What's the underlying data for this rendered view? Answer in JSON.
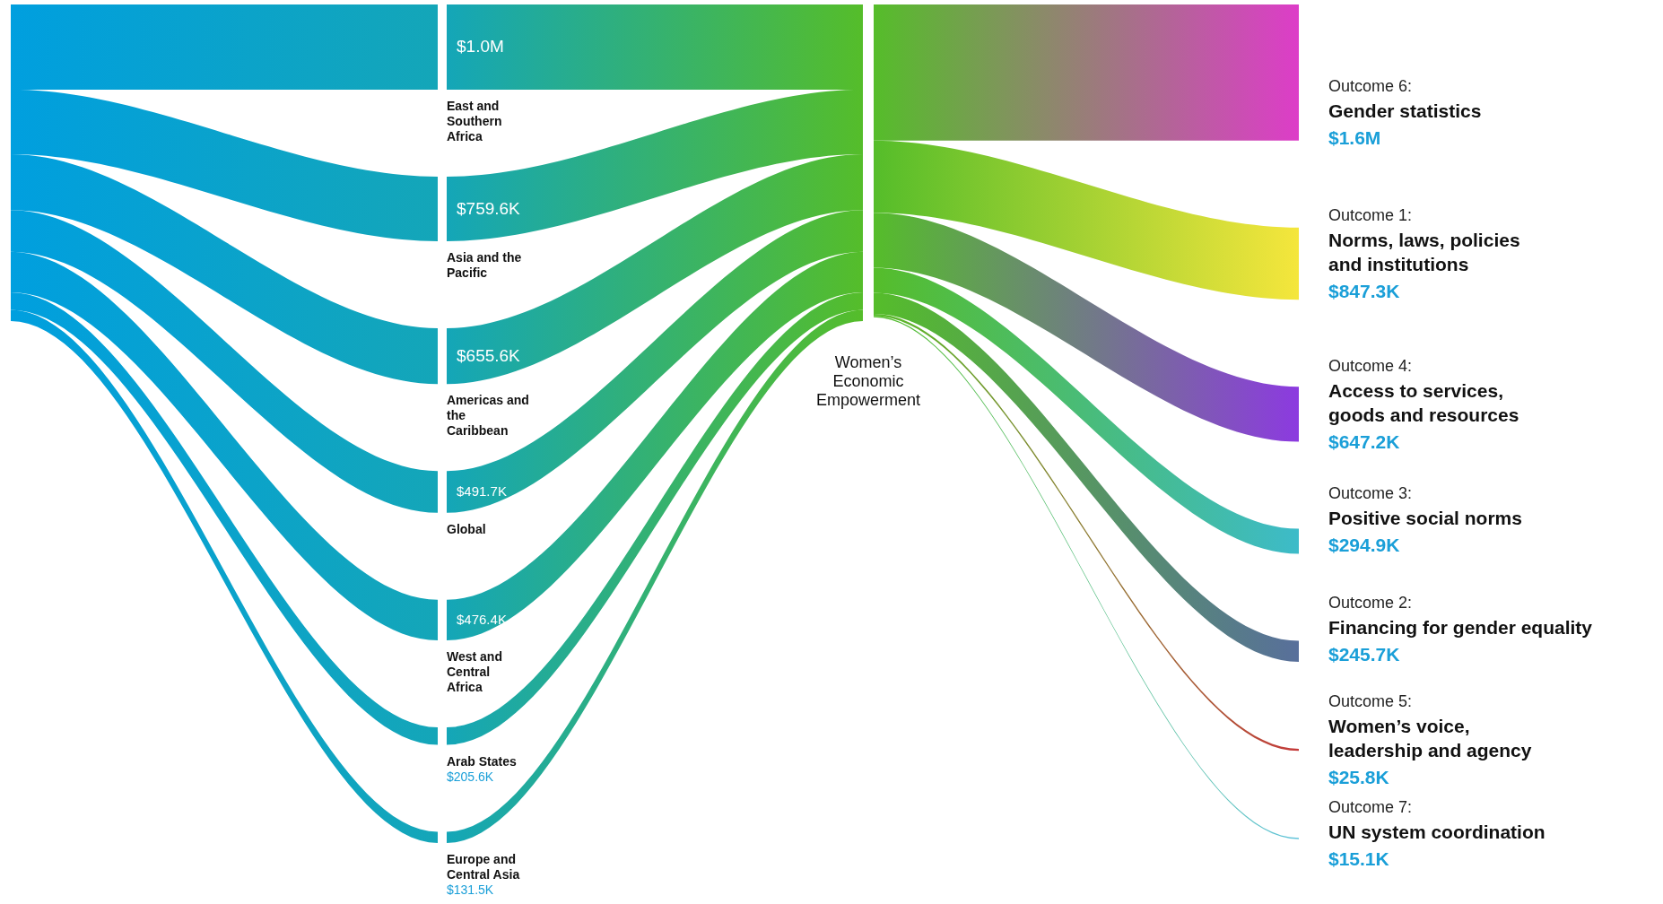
{
  "chart_data": {
    "type": "other",
    "categories": [
      "East and Southern Africa",
      "Asia and the Pacific",
      "Americas and the Caribbean",
      "Global",
      "West and Central Africa",
      "Arab States",
      "Europe and Central Asia",
      "Outcome 6: Gender statistics",
      "Outcome 1: Norms, laws, policies and institutions",
      "Outcome 4: Access to services, goods and resources",
      "Outcome 3: Positive social norms",
      "Outcome 2: Financing for gender equality",
      "Outcome 5: Women’s voice, leadership and agency",
      "Outcome 7: UN system coordination"
    ],
    "series": [
      {
        "values": [
          1000000,
          759600,
          655600,
          491700,
          476400,
          205600,
          131500,
          null,
          null,
          null,
          null,
          null,
          null,
          null
        ],
        "value_labels": [
          "$1.0M",
          "$759.6K",
          "$655.6K",
          "$491.7K",
          "$476.4K",
          "$205.6K",
          "$131.5K",
          null,
          null,
          null,
          null,
          null,
          null,
          null
        ]
      },
      {
        "colors": [
          null,
          null,
          null,
          null,
          null,
          null,
          null,
          "#dd3dc8",
          "#f5e63c",
          "#8c3ae0",
          "#3dbbc9",
          "#586f9b",
          "#c53a3a",
          "#62c4dc"
        ],
        "values": [
          null,
          null,
          null,
          null,
          null,
          null,
          null,
          1600000,
          847300,
          647200,
          294900,
          245700,
          25800,
          15100
        ],
        "value_labels": [
          null,
          null,
          null,
          null,
          null,
          null,
          null,
          "$1.6M",
          "$847.3K",
          "$647.2K",
          "$294.9K",
          "$245.7K",
          "$25.8K",
          "$15.1K"
        ]
      }
    ],
    "annotations": [
      "Women’s Economic Empowerment"
    ]
  }
}
